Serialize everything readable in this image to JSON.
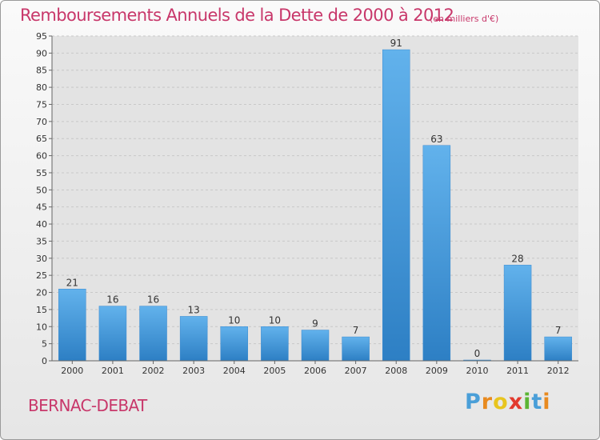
{
  "header": {
    "title": "Remboursements Annuels de la Dette de 2000 à 2012",
    "unit_note": "(en milliers d'€)"
  },
  "footer": {
    "place": "BERNAC-DEBAT",
    "brand_letters": [
      "P",
      "r",
      "o",
      "x",
      "i",
      "t",
      "i"
    ],
    "brand_colors": [
      "#4a9fd8",
      "#e88a1f",
      "#e8c51f",
      "#e23a2e",
      "#5bb534",
      "#4a9fd8",
      "#e88a1f"
    ]
  },
  "colors": {
    "accent": "#c8376a",
    "bar_top": "#62b2ec",
    "bar_bottom": "#2d7fc4",
    "grid": "#c8c8c8",
    "plot_bg": "#e3e3e3"
  },
  "chart_data": {
    "type": "bar",
    "title": "Remboursements Annuels de la Dette de 2000 à 2012",
    "subtitle": "(en milliers d'€)",
    "categories": [
      "2000",
      "2001",
      "2002",
      "2003",
      "2004",
      "2005",
      "2006",
      "2007",
      "2008",
      "2009",
      "2010",
      "2011",
      "2012"
    ],
    "values": [
      21,
      16,
      16,
      13,
      10,
      10,
      9,
      7,
      91,
      63,
      0,
      28,
      7
    ],
    "ylim": [
      0,
      95
    ],
    "yticks": [
      0,
      5,
      10,
      15,
      20,
      25,
      30,
      35,
      40,
      45,
      50,
      55,
      60,
      65,
      70,
      75,
      80,
      85,
      90,
      95
    ],
    "grid": true,
    "legend": "none"
  }
}
